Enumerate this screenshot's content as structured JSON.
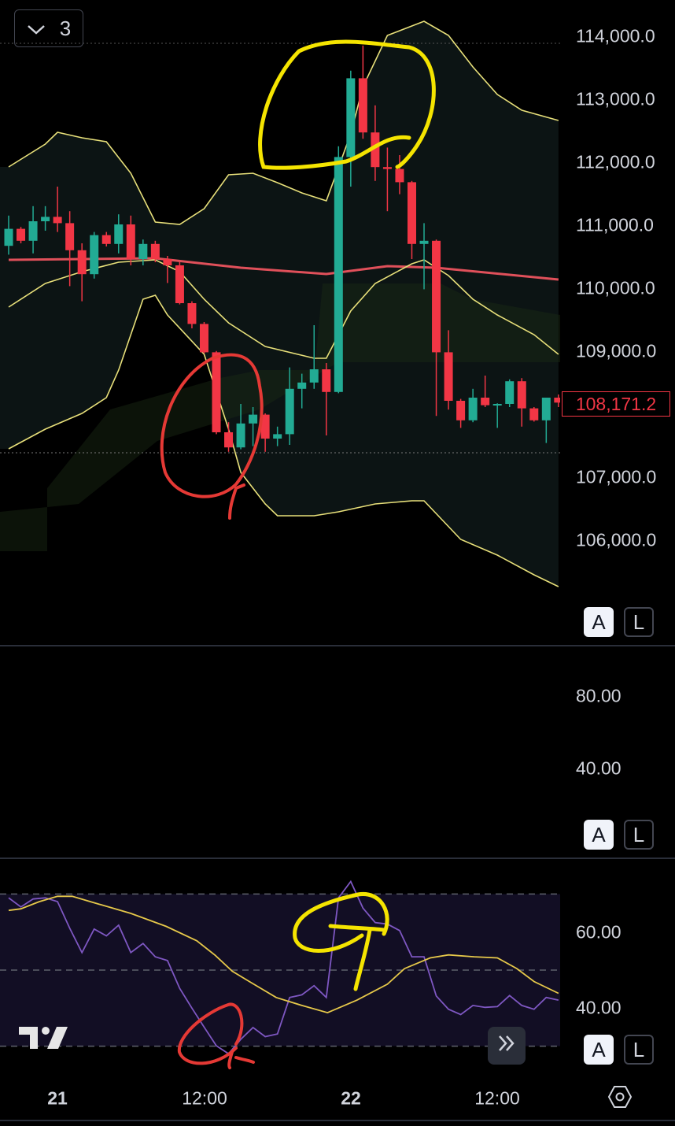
{
  "legend_toggle": {
    "icon": "chevron-down-icon",
    "count": "3"
  },
  "price_axis": {
    "labels": [
      "114,000.0",
      "113,000.0",
      "112,000.0",
      "111,000.0",
      "110,000.0",
      "109,000.0",
      "107,000.0",
      "106,000.0"
    ],
    "current_price": "108,171.2"
  },
  "middle_pane_axis": {
    "labels": [
      "80.00",
      "40.00"
    ]
  },
  "rsi_axis": {
    "labels": [
      "60.00",
      "40.00"
    ]
  },
  "scale_buttons": {
    "auto": "A",
    "log": "L"
  },
  "time_axis": {
    "labels": [
      "21",
      "12:00",
      "22",
      "12:00"
    ]
  },
  "icons": {
    "settings": "hexagon-settings-icon",
    "scroll": "double-chevron-right-icon",
    "logo": "tradingview-logo"
  },
  "colors": {
    "up": "#22ab94",
    "down": "#f23645",
    "bollinger": "#e8e07a",
    "ma": "#e0505a",
    "rsi": "#7e57c2",
    "rsi_ma": "#e6c84a",
    "annotation_yellow": "#f5e400",
    "annotation_red": "#e53935"
  },
  "chart_data": [
    {
      "type": "candlestick",
      "ylim": [
        105000,
        114300
      ],
      "x_ticks": [
        {
          "label": "21",
          "index": 4
        },
        {
          "label": "12:00",
          "index": 16
        },
        {
          "label": "22",
          "index": 28
        },
        {
          "label": "12:00",
          "index": 40
        }
      ],
      "ohlc": [
        [
          110660,
          111140,
          110520,
          110930
        ],
        [
          110930,
          110960,
          110700,
          110740
        ],
        [
          110740,
          111290,
          110540,
          111050
        ],
        [
          111050,
          111290,
          110900,
          111120
        ],
        [
          111120,
          111600,
          110880,
          111020
        ],
        [
          111020,
          111210,
          110020,
          110590
        ],
        [
          110590,
          110700,
          109780,
          110210
        ],
        [
          110210,
          110880,
          110140,
          110830
        ],
        [
          110830,
          110880,
          110650,
          110690
        ],
        [
          110690,
          111160,
          110540,
          111000
        ],
        [
          111000,
          111140,
          110350,
          110450
        ],
        [
          110450,
          110760,
          110350,
          110690
        ],
        [
          110690,
          110740,
          110400,
          110450
        ],
        [
          110450,
          110500,
          110070,
          110350
        ],
        [
          110350,
          110400,
          109730,
          109750
        ],
        [
          109750,
          109780,
          109350,
          109420
        ],
        [
          109420,
          109450,
          108950,
          108970
        ],
        [
          108970,
          108990,
          107670,
          107700
        ],
        [
          107700,
          107860,
          107390,
          107460
        ],
        [
          107460,
          108150,
          107430,
          107840
        ],
        [
          107840,
          108100,
          107480,
          107980
        ],
        [
          107980,
          108000,
          107390,
          107600
        ],
        [
          107600,
          107790,
          107480,
          107670
        ],
        [
          107670,
          108730,
          107500,
          108390
        ],
        [
          108390,
          108630,
          108080,
          108490
        ],
        [
          108490,
          109400,
          108390,
          108700
        ],
        [
          108700,
          108800,
          107650,
          108340
        ],
        [
          108340,
          112240,
          108320,
          112070
        ],
        [
          112070,
          113440,
          111600,
          113320
        ],
        [
          113320,
          113840,
          112360,
          112460
        ],
        [
          112460,
          112890,
          111690,
          111910
        ],
        [
          111910,
          112220,
          111210,
          111880
        ],
        [
          111880,
          112100,
          111480,
          111670
        ],
        [
          111670,
          111690,
          110450,
          110690
        ],
        [
          110690,
          111020,
          109970,
          110740
        ],
        [
          110740,
          110760,
          107960,
          108970
        ],
        [
          108970,
          109320,
          108060,
          108200
        ],
        [
          108200,
          108230,
          107770,
          107890
        ],
        [
          107890,
          108390,
          107860,
          108250
        ],
        [
          108250,
          108600,
          108100,
          108130
        ],
        [
          108130,
          108160,
          107770,
          108150
        ],
        [
          108150,
          108540,
          108100,
          108510
        ],
        [
          108510,
          108560,
          107790,
          108080
        ],
        [
          108080,
          108100,
          107870,
          107890
        ],
        [
          107890,
          108250,
          107530,
          108250
        ],
        [
          108250,
          108300,
          108100,
          108171.2
        ]
      ],
      "bollinger_upper": [
        [
          0,
          111912
        ],
        [
          3,
          112275
        ],
        [
          4,
          112462
        ],
        [
          6,
          112375
        ],
        [
          8,
          112312
        ],
        [
          10,
          111812
        ],
        [
          12,
          111037
        ],
        [
          14,
          111000
        ],
        [
          16,
          111250
        ],
        [
          18,
          111787
        ],
        [
          20,
          111812
        ],
        [
          22,
          111662
        ],
        [
          24,
          111500
        ],
        [
          26,
          111375
        ],
        [
          28,
          112437
        ],
        [
          29,
          113187
        ],
        [
          31,
          114000
        ],
        [
          33,
          114150
        ],
        [
          34,
          114225
        ],
        [
          36,
          114000
        ],
        [
          38,
          113500
        ],
        [
          40,
          113062
        ],
        [
          42,
          112812
        ],
        [
          45,
          112650
        ]
      ],
      "bollinger_middle": [
        [
          0,
          109687
        ],
        [
          3,
          110062
        ],
        [
          6,
          110250
        ],
        [
          9,
          110400
        ],
        [
          12,
          110437
        ],
        [
          14,
          110250
        ],
        [
          16,
          109812
        ],
        [
          18,
          109437
        ],
        [
          21,
          109062
        ],
        [
          25,
          108875
        ],
        [
          26,
          108875
        ],
        [
          28,
          109625
        ],
        [
          30,
          110062
        ],
        [
          33,
          110375
        ],
        [
          34,
          110437
        ],
        [
          36,
          110187
        ],
        [
          38,
          109812
        ],
        [
          40,
          109562
        ],
        [
          43,
          109250
        ],
        [
          45,
          108937
        ]
      ],
      "bollinger_lower": [
        [
          0,
          107437
        ],
        [
          3,
          107750
        ],
        [
          6,
          108000
        ],
        [
          8,
          108250
        ],
        [
          9,
          108687
        ],
        [
          11,
          109812
        ],
        [
          12,
          109875
        ],
        [
          13,
          109562
        ],
        [
          16,
          108937
        ],
        [
          18,
          107750
        ],
        [
          19,
          107062
        ],
        [
          21,
          106562
        ],
        [
          22,
          106375
        ],
        [
          25,
          106375
        ],
        [
          27,
          106437
        ],
        [
          30,
          106562
        ],
        [
          33,
          106612
        ],
        [
          34,
          106612
        ],
        [
          37,
          106000
        ],
        [
          40,
          105750
        ],
        [
          43,
          105437
        ],
        [
          45,
          105250
        ]
      ],
      "moving_average": [
        [
          0,
          110437
        ],
        [
          12,
          110462
        ],
        [
          19,
          110312
        ],
        [
          26,
          110212
        ],
        [
          31,
          110337
        ],
        [
          35,
          110312
        ],
        [
          45,
          110125
        ]
      ]
    },
    {
      "type": "line",
      "ylim": [
        20,
        80
      ],
      "bands": [
        30,
        50,
        70
      ],
      "rsi": [
        69.0,
        66.6,
        68.7,
        69.0,
        68.0,
        61.0,
        54.6,
        60.8,
        59.0,
        61.8,
        54.6,
        57.0,
        53.5,
        52.5,
        45.2,
        40.0,
        35.0,
        30.1,
        28.0,
        31.8,
        34.9,
        32.5,
        33.2,
        42.8,
        43.5,
        45.9,
        42.8,
        69.0,
        73.3,
        66.3,
        62.5,
        62.1,
        60.4,
        53.5,
        53.5,
        43.2,
        39.7,
        38.3,
        40.7,
        40.2,
        40.4,
        43.3,
        40.7,
        39.7,
        42.8,
        42.1
      ],
      "rsi_ma": [
        [
          0,
          65.7
        ],
        [
          1,
          66.1
        ],
        [
          2.5,
          68.0
        ],
        [
          4,
          69.4
        ],
        [
          5.2,
          69.4
        ],
        [
          7,
          67.7
        ],
        [
          10,
          64.9
        ],
        [
          12.9,
          61.5
        ],
        [
          15.4,
          57.7
        ],
        [
          16.9,
          53.9
        ],
        [
          18.3,
          49.7
        ],
        [
          19.7,
          47.0
        ],
        [
          21.9,
          42.8
        ],
        [
          24,
          40.7
        ],
        [
          26.1,
          38.8
        ],
        [
          28.5,
          42.1
        ],
        [
          31,
          46.3
        ],
        [
          32.4,
          50.4
        ],
        [
          34.5,
          53.2
        ],
        [
          36,
          54.0
        ],
        [
          38.1,
          53.5
        ],
        [
          40,
          53.2
        ],
        [
          41.6,
          50.4
        ],
        [
          43,
          47.0
        ],
        [
          45,
          43.9
        ]
      ]
    }
  ]
}
